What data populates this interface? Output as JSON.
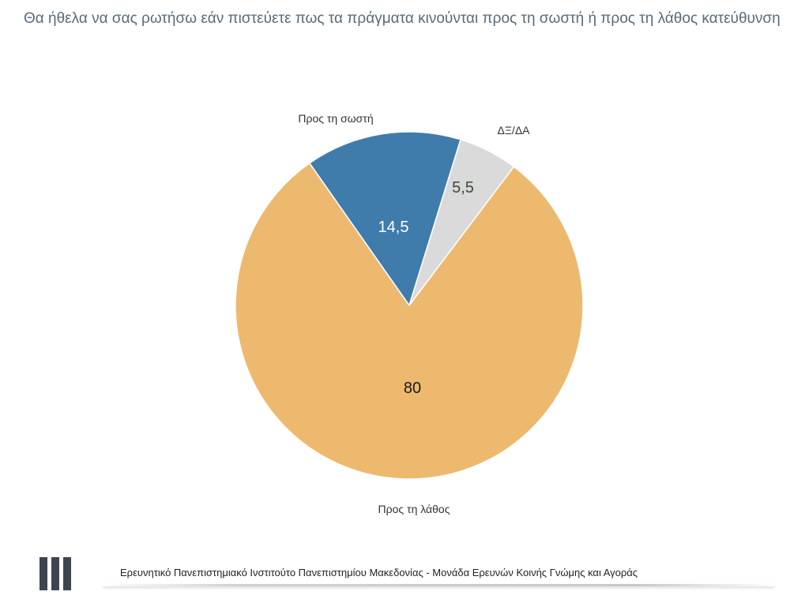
{
  "title": "Θα ήθελα να σας ρωτήσω εάν πιστεύετε πως τα πράγματα κινούνται προς τη σωστή ή προς τη λάθος κατεύθυνση",
  "footer": {
    "text": "Ερευνητικό Πανεπιστημιακό Ινστιτούτο Πανεπιστημίου Μακεδονίας - Μονάδα Ερευνών Κοινής Γνώμης και Αγοράς"
  },
  "chart_data": {
    "type": "pie",
    "categories": [
      "Προς τη σωστή",
      "ΔΞ/ΔΑ",
      "Προς τη λάθος"
    ],
    "values": [
      14.5,
      5.5,
      80
    ],
    "value_labels": [
      "14,5",
      "5,5",
      "80"
    ],
    "colors": [
      "#3f7cac",
      "#dadada",
      "#ecb96e"
    ],
    "value_label_colors": [
      "#ffffff",
      "#3a4a3a",
      "#1a1a1a"
    ],
    "start_angle_deg": -35,
    "direction": "clockwise"
  }
}
